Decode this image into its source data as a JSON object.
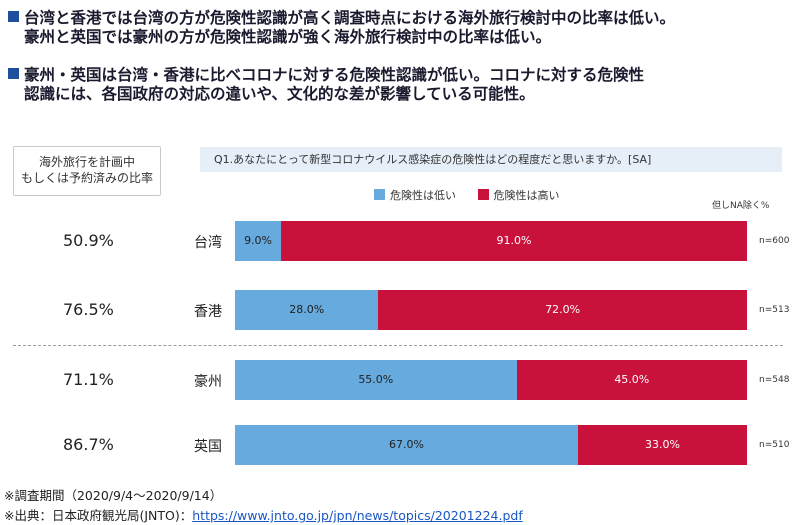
{
  "bullets": [
    {
      "line1": "台湾と香港では台湾の方が危険性認識が高く調査時点における海外旅行検討中の比率は低い。",
      "line2": "豪州と英国では豪州の方が危険性認識が強く海外旅行検討中の比率は低い。"
    },
    {
      "line1": "豪州・英国は台湾・香港に比べコロナに対する危険性認識が低い。コロナに対する危険性",
      "line2": "認識には、各国政府の対応の違いや、文化的な差が影響している可能性。"
    }
  ],
  "ratio_box": {
    "line1": "海外旅行を計画中",
    "line2": "もしくは予約済みの比率"
  },
  "question": "Q1.あなたにとって新型コロナウイルス感染症の危険性はどの程度だと思いますか。[SA]",
  "note_na": "但しNA除く%",
  "colors": {
    "low": "#66aade",
    "high": "#c8123c",
    "bullet": "#1f4e9c",
    "question_bg": "#e6eef8"
  },
  "chart_data": {
    "type": "bar",
    "orientation": "horizontal",
    "stacked": true,
    "unit": "%",
    "categories": [
      "台湾",
      "香港",
      "豪州",
      "英国"
    ],
    "planning_ratio": [
      "50.9%",
      "76.5%",
      "71.1%",
      "86.7%"
    ],
    "sample_sizes": [
      "n=600",
      "n=513",
      "n=548",
      "n=510"
    ],
    "series": [
      {
        "name": "危険性は低い",
        "values": [
          9.0,
          28.0,
          55.0,
          67.0
        ],
        "labels": [
          "9.0%",
          "28.0%",
          "55.0%",
          "67.0%"
        ],
        "color": "#66aade"
      },
      {
        "name": "危険性は高い",
        "values": [
          91.0,
          72.0,
          45.0,
          33.0
        ],
        "labels": [
          "91.0%",
          "72.0%",
          "45.0%",
          "33.0%"
        ],
        "color": "#c8123c"
      }
    ],
    "xlim": [
      0,
      100
    ],
    "legend_position": "top"
  },
  "footer": {
    "survey_period": "※調査期間（2020/9/4～2020/9/14）",
    "source_prefix": "※出典：日本政府観光局(JNTO)：",
    "source_url": "https://www.jnto.go.jp/jpn/news/topics/20201224.pdf"
  }
}
